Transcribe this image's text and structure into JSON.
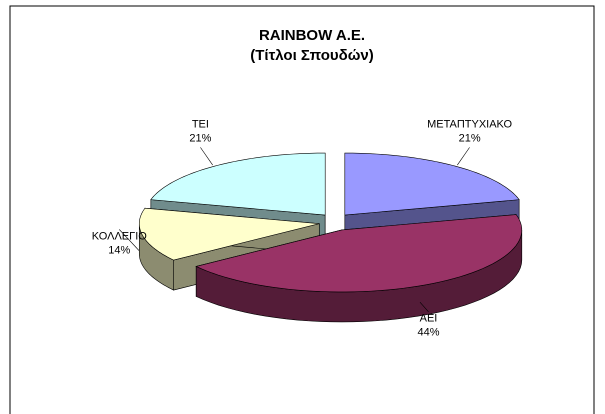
{
  "chart_data": {
    "type": "pie3d",
    "title": "RAINBOW A.E.",
    "subtitle": "(Τίτλοι Σπουδών)",
    "categories": [
      "ΜΕΤΑΠΤΥΧΙΑΚΟ",
      "ΑΕΙ",
      "ΚΟΛΛΕΓΙΟ",
      "ΤΕΙ"
    ],
    "values": [
      21,
      44,
      14,
      21
    ],
    "value_labels": [
      "21%",
      "44%",
      "14%",
      "21%"
    ],
    "colors": [
      "#9999ff",
      "#993366",
      "#ffffcc",
      "#ccffff"
    ]
  }
}
